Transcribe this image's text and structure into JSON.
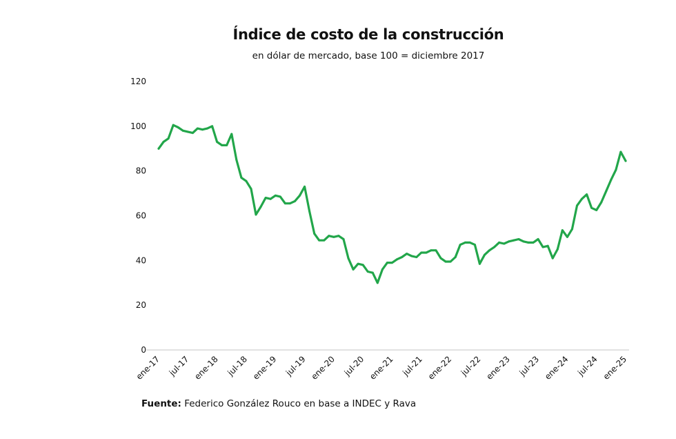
{
  "chart_data": {
    "type": "line",
    "title": "Índice de costo de la construcción",
    "subtitle": "en dólar de mercado, base 100 = diciembre 2017",
    "xlabel": "",
    "ylabel": "",
    "ylim": [
      0,
      120
    ],
    "yticks": [
      "0",
      "20",
      "40",
      "60",
      "80",
      "100",
      "120"
    ],
    "xticks": [
      "ene-17",
      "jul-17",
      "ene-18",
      "jul-18",
      "ene-19",
      "jul-19",
      "ene-20",
      "jul-20",
      "ene-21",
      "jul-21",
      "ene-22",
      "jul-22",
      "ene-23",
      "jul-23",
      "ene-24",
      "jul-24",
      "ene-25"
    ],
    "x_range": [
      "ene-17",
      "ene-25"
    ],
    "frequency": "monthly",
    "color": "#22a64a",
    "grid": false,
    "values": [
      90,
      93,
      94.5,
      100.5,
      99.5,
      98,
      97.5,
      97,
      99,
      98.5,
      99,
      100,
      93,
      91.5,
      91.5,
      96.5,
      85,
      77,
      75.5,
      72,
      60.5,
      64,
      68,
      67.5,
      69,
      68.5,
      65.5,
      65.5,
      66.5,
      69,
      73,
      62,
      52,
      49,
      49,
      51,
      50.5,
      51,
      49.5,
      41,
      36,
      38.5,
      38,
      35,
      34.5,
      30,
      36,
      39,
      39,
      40.5,
      41.5,
      43,
      42,
      41.5,
      43.5,
      43.5,
      44.5,
      44.5,
      41,
      39.5,
      39.5,
      41.5,
      47,
      48,
      48,
      47,
      38.5,
      42.5,
      44.5,
      46,
      48,
      47.5,
      48.5,
      49,
      49.5,
      48.5,
      48,
      48,
      49.5,
      46,
      46.5,
      41,
      45,
      53.5,
      50.5,
      54,
      64.5,
      67.5,
      69.5,
      63.5,
      62.5,
      66,
      71,
      76,
      80.5,
      88.5,
      84.5
    ]
  },
  "source": {
    "label": "Fuente:",
    "text": " Federico González Rouco en base a INDEC y Rava"
  }
}
